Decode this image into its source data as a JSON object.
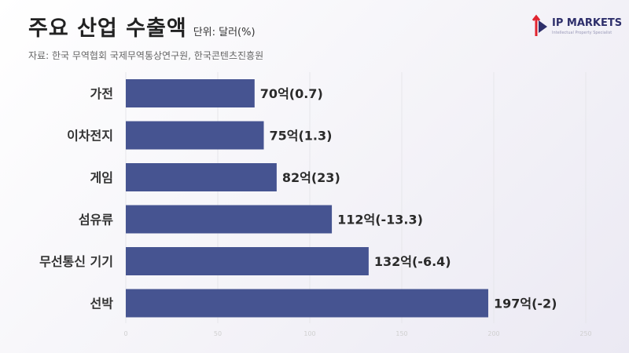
{
  "header": {
    "title": "주요 산업 수출액",
    "unit": "단위: 달러(%)",
    "source": "자료: 한국 무역협회 국제무역통상연구원, 한국콘텐츠진흥원"
  },
  "logo": {
    "main": "IP MARKETS",
    "sub": "Intellectual Property Specialist"
  },
  "colors": {
    "bar": "#465491",
    "logo_red": "#e0232f",
    "logo_navy": "#2e2f6b"
  },
  "chart_data": {
    "type": "bar",
    "orientation": "horizontal",
    "categories": [
      "가전",
      "이차전지",
      "게임",
      "섬유류",
      "무선통신 기기",
      "선박"
    ],
    "values": [
      70,
      75,
      82,
      112,
      132,
      197
    ],
    "data_labels": [
      "70억(0.7)",
      "75억(1.3)",
      "82억(23)",
      "112억(-13.3)",
      "132억(-6.4)",
      "197억(-2)"
    ],
    "xlim": [
      0,
      250
    ],
    "xticks": [
      "0",
      "50",
      "100",
      "150",
      "200",
      "250"
    ],
    "grid": true
  }
}
